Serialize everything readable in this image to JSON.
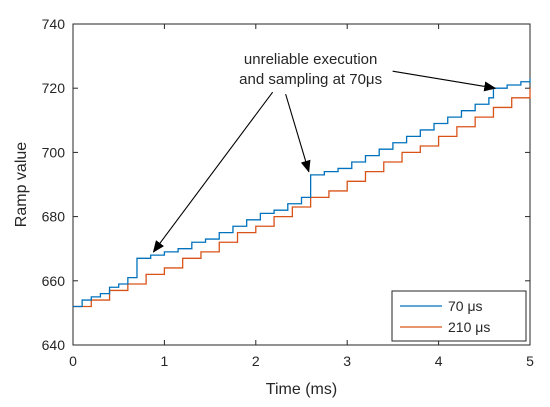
{
  "chart_data": {
    "type": "line",
    "title": "",
    "xlabel": "Time (ms)",
    "ylabel": "Ramp value",
    "xlim": [
      0,
      5
    ],
    "ylim": [
      640,
      740
    ],
    "xticks": [
      0,
      1,
      2,
      3,
      4,
      5
    ],
    "xtick_labels": [
      "0",
      "1",
      "2",
      "3",
      "4",
      "5"
    ],
    "yticks": [
      640,
      660,
      680,
      700,
      720,
      740
    ],
    "ytick_labels": [
      "640",
      "660",
      "680",
      "700",
      "720",
      "740"
    ],
    "grid": false,
    "legend_position": "bottom-right",
    "series": [
      {
        "name": "70 μs",
        "color": "#0072BD",
        "step": true,
        "x": [
          0,
          0.1,
          0.2,
          0.3,
          0.4,
          0.5,
          0.6,
          0.7,
          0.85,
          1.0,
          1.15,
          1.3,
          1.45,
          1.6,
          1.75,
          1.9,
          2.05,
          2.2,
          2.35,
          2.5,
          2.6,
          2.75,
          2.9,
          3.05,
          3.2,
          3.35,
          3.5,
          3.65,
          3.8,
          3.95,
          4.1,
          4.25,
          4.4,
          4.55,
          4.6,
          4.75,
          4.9,
          5.0
        ],
        "y": [
          652,
          654,
          655,
          656,
          658,
          659,
          661,
          667,
          668,
          669,
          670,
          672,
          673,
          675,
          677,
          679,
          681,
          682,
          684,
          686,
          693,
          694,
          695,
          697,
          699,
          701,
          703,
          705,
          707,
          709,
          711,
          713,
          715,
          717,
          720,
          721,
          722,
          723
        ]
      },
      {
        "name": "210 μs",
        "color": "#D95319",
        "step": true,
        "x": [
          0,
          0.2,
          0.4,
          0.6,
          0.8,
          1.0,
          1.2,
          1.4,
          1.6,
          1.8,
          2.0,
          2.2,
          2.4,
          2.6,
          2.8,
          3.0,
          3.2,
          3.4,
          3.6,
          3.8,
          4.0,
          4.2,
          4.4,
          4.6,
          4.8,
          5.0
        ],
        "y": [
          652,
          654,
          657,
          659,
          662,
          664,
          667,
          669,
          672,
          675,
          677,
          680,
          683,
          686,
          688,
          691,
          694,
          697,
          700,
          702,
          705,
          708,
          711,
          714,
          717,
          720
        ]
      }
    ],
    "annotations": [
      {
        "lines": [
          "unreliable execution",
          "and sampling at 70μs"
        ],
        "text_at": [
          2.6,
          725
        ],
        "arrows_to": [
          [
            0.88,
            669
          ],
          [
            2.58,
            694
          ],
          [
            4.62,
            720
          ]
        ]
      }
    ]
  }
}
